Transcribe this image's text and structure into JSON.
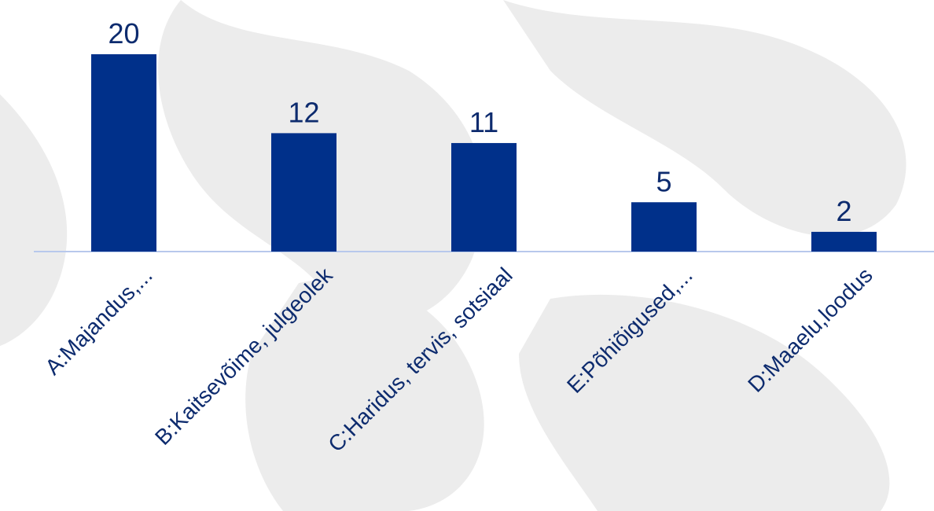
{
  "chart_data": {
    "type": "bar",
    "categories": [
      "A:Majandus,...",
      "B:Kaitsevõime, julgeolek",
      "C:Haridus, tervis, sotsiaal",
      "E:Põhiõigused,...",
      "D:Maaelu,loodus"
    ],
    "values": [
      20,
      12,
      11,
      5,
      2
    ],
    "color": "#00308a"
  }
}
